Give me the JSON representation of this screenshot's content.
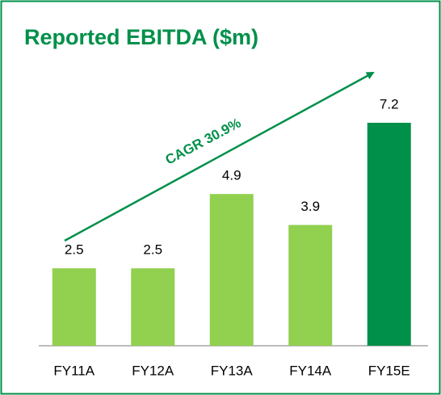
{
  "chart_data": {
    "type": "bar",
    "title": "Reported EBITDA ($m)",
    "categories": [
      "FY11A",
      "FY12A",
      "FY13A",
      "FY14A",
      "FY15E"
    ],
    "values": [
      2.5,
      2.5,
      4.9,
      3.9,
      7.2
    ],
    "colors": [
      "#92d050",
      "#92d050",
      "#92d050",
      "#92d050",
      "#00904a"
    ],
    "annotation": "CAGR 30.9%"
  }
}
